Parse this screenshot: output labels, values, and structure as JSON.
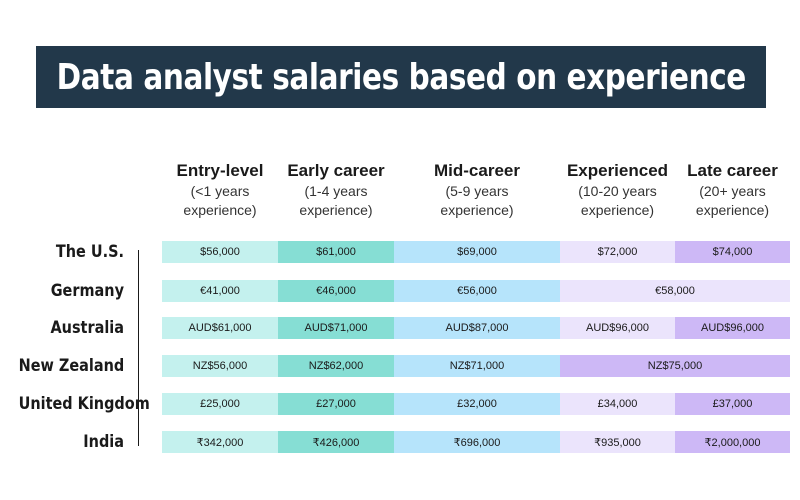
{
  "title": "Data analyst salaries based on experience",
  "colors": {
    "banner": "#22384a",
    "entry": "#c4f1ee",
    "early": "#86ded4",
    "mid": "#b6e4fb",
    "experienced": "#ebe4fc",
    "late": "#cdb8f6"
  },
  "chart_data": {
    "type": "table",
    "title": "Data analyst salaries based on experience",
    "columns": [
      {
        "key": "entry",
        "title": "Entry-level",
        "sub1": "(<1 years",
        "sub2": "experience)"
      },
      {
        "key": "early",
        "title": "Early career",
        "sub1": "(1-4 years",
        "sub2": "experience)"
      },
      {
        "key": "mid",
        "title": "Mid-career",
        "sub1": "(5-9 years",
        "sub2": "experience)"
      },
      {
        "key": "experienced",
        "title": "Experienced",
        "sub1": "(10-20 years",
        "sub2": "experience)"
      },
      {
        "key": "late",
        "title": "Late career",
        "sub1": "(20+ years",
        "sub2": "experience)"
      }
    ],
    "rows": [
      {
        "country": "The U.S.",
        "cells": [
          {
            "value": "$56,000",
            "span": 1,
            "color": "entry"
          },
          {
            "value": "$61,000",
            "span": 1,
            "color": "early"
          },
          {
            "value": "$69,000",
            "span": 1,
            "color": "mid"
          },
          {
            "value": "$72,000",
            "span": 1,
            "color": "experienced"
          },
          {
            "value": "$74,000",
            "span": 1,
            "color": "late"
          }
        ]
      },
      {
        "country": "Germany",
        "cells": [
          {
            "value": "€41,000",
            "span": 1,
            "color": "entry"
          },
          {
            "value": "€46,000",
            "span": 1,
            "color": "early"
          },
          {
            "value": "€56,000",
            "span": 1,
            "color": "mid"
          },
          {
            "value": "€58,000",
            "span": 2,
            "color": "experienced"
          }
        ]
      },
      {
        "country": "Australia",
        "cells": [
          {
            "value": "AUD$61,000",
            "span": 1,
            "color": "entry"
          },
          {
            "value": "AUD$71,000",
            "span": 1,
            "color": "early"
          },
          {
            "value": "AUD$87,000",
            "span": 1,
            "color": "mid"
          },
          {
            "value": "AUD$96,000",
            "span": 1,
            "color": "experienced"
          },
          {
            "value": "AUD$96,000",
            "span": 1,
            "color": "late"
          }
        ]
      },
      {
        "country": "New Zealand",
        "cells": [
          {
            "value": "NZ$56,000",
            "span": 1,
            "color": "entry"
          },
          {
            "value": "NZ$62,000",
            "span": 1,
            "color": "early"
          },
          {
            "value": "NZ$71,000",
            "span": 1,
            "color": "mid"
          },
          {
            "value": "NZ$75,000",
            "span": 2,
            "color": "late"
          }
        ]
      },
      {
        "country": "United Kingdom",
        "cells": [
          {
            "value": "£25,000",
            "span": 1,
            "color": "entry"
          },
          {
            "value": "£27,000",
            "span": 1,
            "color": "early"
          },
          {
            "value": "£32,000",
            "span": 1,
            "color": "mid"
          },
          {
            "value": "£34,000",
            "span": 1,
            "color": "experienced"
          },
          {
            "value": "£37,000",
            "span": 1,
            "color": "late"
          }
        ]
      },
      {
        "country": "India",
        "cells": [
          {
            "value": "₹342,000",
            "span": 1,
            "color": "entry"
          },
          {
            "value": "₹426,000",
            "span": 1,
            "color": "early"
          },
          {
            "value": "₹696,000",
            "span": 1,
            "color": "mid"
          },
          {
            "value": "₹935,000",
            "span": 1,
            "color": "experienced"
          },
          {
            "value": "₹2,000,000",
            "span": 1,
            "color": "late"
          }
        ]
      }
    ]
  }
}
